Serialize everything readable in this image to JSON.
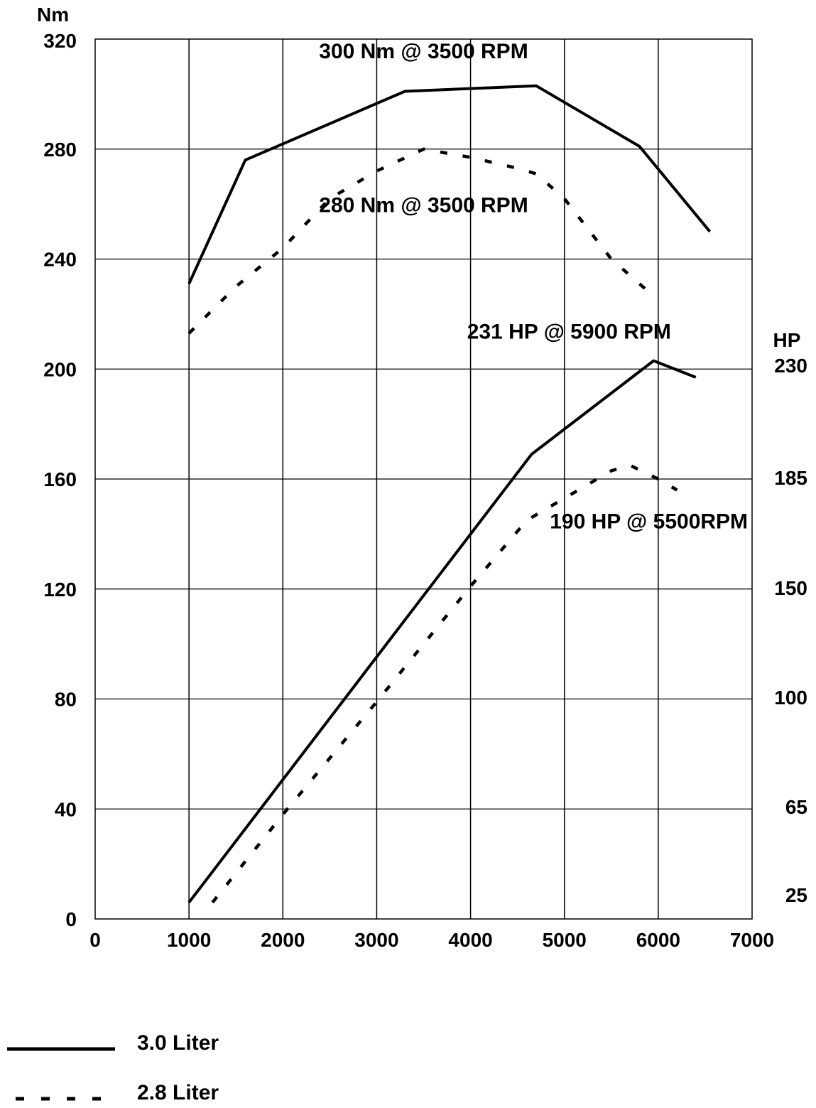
{
  "chart_data": {
    "type": "line",
    "x_ticks": [
      0,
      1000,
      2000,
      3000,
      4000,
      5000,
      6000,
      7000
    ],
    "xlim": [
      0,
      7000
    ],
    "left_axis": {
      "unit": "Nm",
      "ticks": [
        0,
        40,
        80,
        120,
        160,
        200,
        240,
        280,
        320
      ],
      "ylim": [
        0,
        320
      ]
    },
    "right_axis": {
      "unit": "HP",
      "ticks": [
        25,
        65,
        100,
        150,
        185,
        230
      ]
    },
    "grid": true,
    "series": [
      {
        "name": "3.0 Liter",
        "style": "solid",
        "group": "torque",
        "x": [
          1000,
          1600,
          3300,
          4700,
          5800,
          6550
        ],
        "y": [
          231,
          276,
          301,
          303,
          281,
          250
        ]
      },
      {
        "name": "2.8 Liter",
        "style": "dashed",
        "group": "torque",
        "x": [
          1000,
          1500,
          2000,
          2500,
          3000,
          3500,
          4000,
          4500,
          4700,
          5000,
          5500,
          5900
        ],
        "y": [
          213,
          230,
          244,
          262,
          272,
          280,
          277,
          273,
          271,
          262,
          240,
          228
        ]
      },
      {
        "name": "3.0 Liter",
        "style": "solid",
        "group": "power",
        "x": [
          1000,
          4650,
          5950,
          6400
        ],
        "y": [
          6,
          169,
          203,
          197
        ]
      },
      {
        "name": "2.8 Liter",
        "style": "dashed",
        "group": "power",
        "x": [
          1250,
          2000,
          3000,
          4000,
          4600,
          5000,
          5500,
          5700,
          6000,
          6200
        ],
        "y": [
          6,
          38,
          79,
          121,
          145,
          153,
          163,
          165,
          160,
          156
        ]
      }
    ],
    "annotations": [
      {
        "text": "300 Nm @ 3500 RPM",
        "x": 3500,
        "y": 313
      },
      {
        "text": "280 Nm @ 3500 RPM",
        "x": 3500,
        "y": 257
      },
      {
        "text": "231 HP @ 5900 RPM",
        "x": 5050,
        "y": 211
      },
      {
        "text": "190 HP @ 5500RPM",
        "x": 5900,
        "y": 142
      }
    ],
    "legend": {
      "placement": "bottom-left",
      "entries": [
        {
          "label": "3.0 Liter",
          "style": "solid"
        },
        {
          "label": "2.8 Liter",
          "style": "dashed"
        }
      ]
    }
  }
}
